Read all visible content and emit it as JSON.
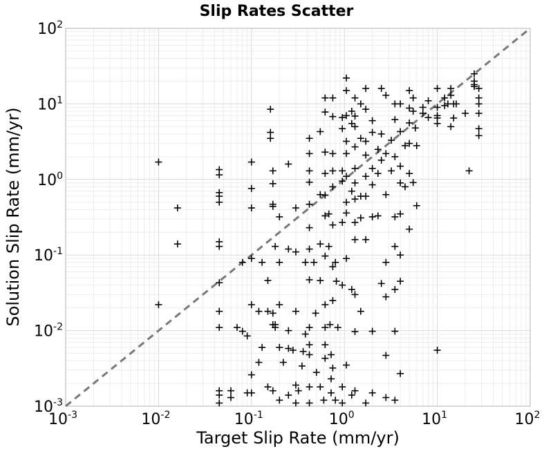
{
  "chart_data": {
    "type": "scatter",
    "title": "Slip Rates Scatter",
    "xlabel": "Target Slip Rate (mm/yr)",
    "ylabel": "Solution Slip Rate (mm/yr)",
    "xscale": "log",
    "yscale": "log",
    "xlim": [
      0.001,
      100
    ],
    "ylim": [
      0.001,
      100
    ],
    "x_ticks": [
      {
        "base": "10",
        "exp": "-3"
      },
      {
        "base": "10",
        "exp": "-2"
      },
      {
        "base": "10",
        "exp": "-1"
      },
      {
        "base": "10",
        "exp": "0"
      },
      {
        "base": "10",
        "exp": "1"
      },
      {
        "base": "10",
        "exp": "2"
      }
    ],
    "y_ticks": [
      {
        "base": "10",
        "exp": "-3"
      },
      {
        "base": "10",
        "exp": "-2"
      },
      {
        "base": "10",
        "exp": "-1"
      },
      {
        "base": "10",
        "exp": "0"
      },
      {
        "base": "10",
        "exp": "1"
      },
      {
        "base": "10",
        "exp": "2"
      }
    ],
    "grid": true,
    "marker": "+",
    "marker_color": "#000000",
    "reference_line": {
      "style": "dashed",
      "color": "#777777",
      "from": [
        0.001,
        0.001
      ],
      "to": [
        100,
        100
      ]
    },
    "points": [
      [
        0.01,
        1.7
      ],
      [
        0.01,
        0.022
      ],
      [
        0.016,
        0.42
      ],
      [
        0.016,
        0.14
      ],
      [
        0.045,
        1.35
      ],
      [
        0.045,
        1.15
      ],
      [
        0.045,
        0.67
      ],
      [
        0.045,
        0.6
      ],
      [
        0.045,
        0.5
      ],
      [
        0.045,
        0.15
      ],
      [
        0.045,
        0.13
      ],
      [
        0.045,
        0.043
      ],
      [
        0.045,
        0.018
      ],
      [
        0.045,
        0.011
      ],
      [
        0.045,
        0.0016
      ],
      [
        0.045,
        0.0014
      ],
      [
        0.045,
        0.0011
      ],
      [
        0.06,
        0.0016
      ],
      [
        0.06,
        0.0013
      ],
      [
        0.07,
        0.011
      ],
      [
        0.08,
        0.0098
      ],
      [
        0.08,
        0.08
      ],
      [
        0.09,
        0.0085
      ],
      [
        0.09,
        0.0015
      ],
      [
        0.1,
        1.7
      ],
      [
        0.1,
        0.76
      ],
      [
        0.1,
        0.42
      ],
      [
        0.1,
        0.09
      ],
      [
        0.1,
        0.022
      ],
      [
        0.1,
        0.0026
      ],
      [
        0.1,
        0.0015
      ],
      [
        0.12,
        0.0038
      ],
      [
        0.12,
        0.018
      ],
      [
        0.13,
        0.08
      ],
      [
        0.13,
        0.006
      ],
      [
        0.15,
        0.018
      ],
      [
        0.15,
        0.046
      ],
      [
        0.15,
        0.0018
      ],
      [
        0.16,
        8.5
      ],
      [
        0.16,
        4.2
      ],
      [
        0.16,
        3.5
      ],
      [
        0.17,
        1.3
      ],
      [
        0.17,
        0.88
      ],
      [
        0.17,
        0.47
      ],
      [
        0.17,
        0.44
      ],
      [
        0.17,
        0.012
      ],
      [
        0.17,
        0.0016
      ],
      [
        0.17,
        0.017
      ],
      [
        0.18,
        0.13
      ],
      [
        0.18,
        0.011
      ],
      [
        0.18,
        0.012
      ],
      [
        0.2,
        0.32
      ],
      [
        0.2,
        0.022
      ],
      [
        0.2,
        0.006
      ],
      [
        0.2,
        0.0012
      ],
      [
        0.2,
        0.08
      ],
      [
        0.22,
        0.0038
      ],
      [
        0.25,
        1.6
      ],
      [
        0.25,
        0.12
      ],
      [
        0.25,
        0.01
      ],
      [
        0.25,
        0.0058
      ],
      [
        0.25,
        0.0014
      ],
      [
        0.28,
        0.0055
      ],
      [
        0.3,
        0.42
      ],
      [
        0.3,
        0.11
      ],
      [
        0.3,
        0.018
      ],
      [
        0.3,
        0.0019
      ],
      [
        0.3,
        0.0011
      ],
      [
        0.32,
        0.0016
      ],
      [
        0.36,
        0.0053
      ],
      [
        0.35,
        0.0034
      ],
      [
        0.38,
        0.08
      ],
      [
        0.38,
        0.009
      ],
      [
        0.42,
        3.5
      ],
      [
        0.42,
        2.2
      ],
      [
        0.42,
        1.3
      ],
      [
        0.42,
        0.92
      ],
      [
        0.42,
        0.47
      ],
      [
        0.42,
        0.23
      ],
      [
        0.42,
        0.12
      ],
      [
        0.42,
        0.047
      ],
      [
        0.42,
        0.011
      ],
      [
        0.42,
        0.0065
      ],
      [
        0.42,
        0.0048
      ],
      [
        0.42,
        0.0018
      ],
      [
        0.42,
        0.0011
      ],
      [
        0.47,
        0.08
      ],
      [
        0.49,
        0.017
      ],
      [
        0.5,
        0.0028
      ],
      [
        0.55,
        4.3
      ],
      [
        0.55,
        0.63
      ],
      [
        0.55,
        0.14
      ],
      [
        0.55,
        0.046
      ],
      [
        0.55,
        0.0018
      ],
      [
        0.6,
        0.0012
      ],
      [
        0.62,
        12
      ],
      [
        0.62,
        7.8
      ],
      [
        0.62,
        2.3
      ],
      [
        0.62,
        1.2
      ],
      [
        0.62,
        0.62
      ],
      [
        0.62,
        0.33
      ],
      [
        0.62,
        0.097
      ],
      [
        0.62,
        0.022
      ],
      [
        0.62,
        0.011
      ],
      [
        0.62,
        0.0065
      ],
      [
        0.62,
        0.0043
      ],
      [
        0.68,
        0.35
      ],
      [
        0.68,
        0.13
      ],
      [
        0.7,
        0.012
      ],
      [
        0.72,
        0.0015
      ],
      [
        0.72,
        0.0023
      ],
      [
        0.72,
        0.0048
      ],
      [
        0.75,
        12
      ],
      [
        0.75,
        6.8
      ],
      [
        0.75,
        2.2
      ],
      [
        0.75,
        1.3
      ],
      [
        0.75,
        0.8
      ],
      [
        0.75,
        0.25
      ],
      [
        0.75,
        0.07
      ],
      [
        0.75,
        0.025
      ],
      [
        0.75,
        0.0032
      ],
      [
        0.8,
        0.08
      ],
      [
        0.82,
        0.045
      ],
      [
        0.8,
        0.0012
      ],
      [
        0.85,
        0.011
      ],
      [
        0.95,
        6.6
      ],
      [
        0.95,
        4.7
      ],
      [
        0.95,
        1.3
      ],
      [
        0.95,
        0.95
      ],
      [
        0.95,
        0.27
      ],
      [
        0.95,
        0.04
      ],
      [
        0.95,
        0.0018
      ],
      [
        0.95,
        0.0011
      ],
      [
        1.05,
        22
      ],
      [
        1.05,
        15
      ],
      [
        1.05,
        7
      ],
      [
        1.05,
        3.2
      ],
      [
        1.05,
        2.2
      ],
      [
        1.05,
        1.1
      ],
      [
        1.05,
        0.5
      ],
      [
        1.05,
        0.36
      ],
      [
        1.05,
        0.09
      ],
      [
        1.05,
        0.0035
      ],
      [
        1.2,
        8
      ],
      [
        1.2,
        5.5
      ],
      [
        1.2,
        0.7
      ],
      [
        1.2,
        0.035
      ],
      [
        1.2,
        0.0014
      ],
      [
        1.3,
        12
      ],
      [
        1.3,
        6.9
      ],
      [
        1.3,
        5
      ],
      [
        1.3,
        2.7
      ],
      [
        1.3,
        1.4
      ],
      [
        1.3,
        0.9
      ],
      [
        1.3,
        0.55
      ],
      [
        1.3,
        0.27
      ],
      [
        1.3,
        0.16
      ],
      [
        1.3,
        0.03
      ],
      [
        1.3,
        0.0097
      ],
      [
        1.3,
        0.0016
      ],
      [
        1.5,
        10
      ],
      [
        1.5,
        3.5
      ],
      [
        1.5,
        0.6
      ],
      [
        1.5,
        0.31
      ],
      [
        1.5,
        0.018
      ],
      [
        1.7,
        16
      ],
      [
        1.7,
        8.5
      ],
      [
        1.7,
        3.2
      ],
      [
        1.7,
        2.1
      ],
      [
        1.7,
        1.1
      ],
      [
        1.7,
        0.6
      ],
      [
        1.7,
        0.16
      ],
      [
        1.7,
        0.0011
      ],
      [
        2,
        6
      ],
      [
        2,
        4.2
      ],
      [
        2,
        1.4
      ],
      [
        2,
        0.85
      ],
      [
        2,
        0.32
      ],
      [
        2,
        0.0098
      ],
      [
        2,
        0.0015
      ],
      [
        2.3,
        2.5
      ],
      [
        2.3,
        1.2
      ],
      [
        2.3,
        0.33
      ],
      [
        2.5,
        16
      ],
      [
        2.5,
        4
      ],
      [
        2.5,
        1.8
      ],
      [
        2.5,
        0.042
      ],
      [
        2.8,
        13
      ],
      [
        2.8,
        2.2
      ],
      [
        2.8,
        0.63
      ],
      [
        2.8,
        0.08
      ],
      [
        2.8,
        0.028
      ],
      [
        2.8,
        0.0047
      ],
      [
        2.8,
        0.0013
      ],
      [
        3.2,
        3.3
      ],
      [
        3.2,
        1.3
      ],
      [
        3.5,
        10
      ],
      [
        3.5,
        6.2
      ],
      [
        3.5,
        2
      ],
      [
        3.5,
        0.32
      ],
      [
        3.5,
        0.13
      ],
      [
        3.5,
        0.035
      ],
      [
        3.5,
        0.0098
      ],
      [
        3.5,
        0.0012
      ],
      [
        4,
        10
      ],
      [
        4,
        4.3
      ],
      [
        4,
        1.5
      ],
      [
        4,
        0.9
      ],
      [
        4,
        0.35
      ],
      [
        4,
        0.1
      ],
      [
        4,
        0.045
      ],
      [
        4,
        0.0027
      ],
      [
        4.5,
        2.8
      ],
      [
        4.5,
        0.8
      ],
      [
        5,
        15
      ],
      [
        5,
        8.8
      ],
      [
        5,
        5.6
      ],
      [
        5,
        3
      ],
      [
        5,
        1.2
      ],
      [
        5,
        0.22
      ],
      [
        5.5,
        12
      ],
      [
        5.5,
        8
      ],
      [
        5.5,
        0.91
      ],
      [
        5.8,
        4.8
      ],
      [
        6,
        2.8
      ],
      [
        6,
        0.45
      ],
      [
        7,
        9
      ],
      [
        7,
        7.5
      ],
      [
        8,
        11
      ],
      [
        8,
        6.6
      ],
      [
        10,
        16
      ],
      [
        10,
        9
      ],
      [
        10,
        6.5
      ],
      [
        10,
        5.5
      ],
      [
        10,
        0.0055
      ],
      [
        10,
        7
      ],
      [
        12,
        12
      ],
      [
        12,
        9.5
      ],
      [
        13,
        10
      ],
      [
        14,
        16
      ],
      [
        14,
        13
      ],
      [
        14,
        5
      ],
      [
        15,
        10
      ],
      [
        15,
        6.5
      ],
      [
        16,
        10
      ],
      [
        20,
        7.5
      ],
      [
        22,
        1.3
      ],
      [
        25,
        25
      ],
      [
        25,
        20
      ],
      [
        25,
        17
      ],
      [
        25,
        18
      ],
      [
        28,
        16
      ],
      [
        28,
        12
      ],
      [
        28,
        10
      ],
      [
        28,
        7.5
      ],
      [
        28,
        4.7
      ],
      [
        28,
        3.8
      ]
    ]
  }
}
